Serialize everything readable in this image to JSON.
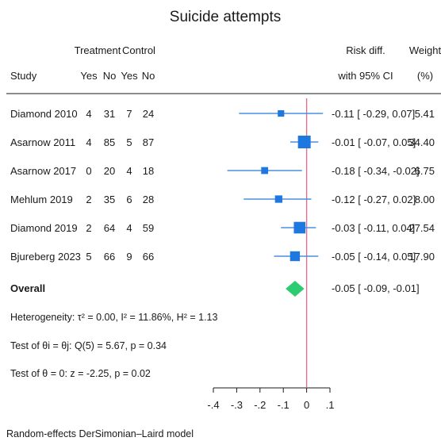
{
  "chart_data": {
    "type": "forest",
    "title": "Suicide attempts",
    "headers": {
      "study": "Study",
      "treatment": "Treatment",
      "control": "Control",
      "yes": "Yes",
      "no": "No",
      "effect_line1": "Risk diff.",
      "effect_line2": "with 95% CI",
      "weight_line1": "Weight",
      "weight_line2": "(%)"
    },
    "studies": [
      {
        "name": "Diamond 2010",
        "t_yes": "4",
        "t_no": "31",
        "c_yes": "7",
        "c_no": "24",
        "rd": -0.11,
        "lo": -0.29,
        "hi": 0.07,
        "ci_text": "-0.11 [ -0.29,  0.07]",
        "weight": 5.41,
        "weight_text": "5.41"
      },
      {
        "name": "Asarnow 2011",
        "t_yes": "4",
        "t_no": "85",
        "c_yes": "5",
        "c_no": "87",
        "rd": -0.01,
        "lo": -0.07,
        "hi": 0.05,
        "ci_text": "-0.01 [ -0.07,  0.05]",
        "weight": 34.4,
        "weight_text": "34.40"
      },
      {
        "name": "Asarnow 2017",
        "t_yes": "0",
        "t_no": "20",
        "c_yes": "4",
        "c_no": "18",
        "rd": -0.18,
        "lo": -0.34,
        "hi": -0.02,
        "ci_text": "-0.18 [ -0.34, -0.02]",
        "weight": 6.75,
        "weight_text": "6.75"
      },
      {
        "name": "Mehlum 2019",
        "t_yes": "2",
        "t_no": "35",
        "c_yes": "6",
        "c_no": "28",
        "rd": -0.12,
        "lo": -0.27,
        "hi": 0.02,
        "ci_text": "-0.12 [ -0.27,  0.02]",
        "weight": 8.0,
        "weight_text": "8.00"
      },
      {
        "name": "Diamond 2019",
        "t_yes": "2",
        "t_no": "64",
        "c_yes": "4",
        "c_no": "59",
        "rd": -0.03,
        "lo": -0.11,
        "hi": 0.04,
        "ci_text": "-0.03 [ -0.11,  0.04]",
        "weight": 27.54,
        "weight_text": "27.54"
      },
      {
        "name": "Bjureberg 2023",
        "t_yes": "5",
        "t_no": "66",
        "c_yes": "9",
        "c_no": "66",
        "rd": -0.05,
        "lo": -0.14,
        "hi": 0.05,
        "ci_text": "-0.05 [ -0.14,  0.05]",
        "weight": 17.9,
        "weight_text": "17.90"
      }
    ],
    "overall": {
      "label": "Overall",
      "rd": -0.05,
      "lo": -0.09,
      "hi": -0.01,
      "ci_text": "-0.05 [ -0.09, -0.01]"
    },
    "stats": {
      "heterogeneity": "Heterogeneity: τ² = 0.00, I² = 11.86%, H² = 1.13",
      "test_theta_eq": "Test of θi = θj: Q(5) = 5.67, p = 0.34",
      "test_theta_zero": "Test of θ = 0: z = -2.25, p = 0.02"
    },
    "xaxis": {
      "ticks": [
        -0.4,
        -0.3,
        -0.2,
        -0.1,
        0,
        0.1
      ],
      "tick_labels": [
        "-.4",
        "-.3",
        "-.2",
        "-.1",
        "0",
        ".1"
      ],
      "xlim": [
        -0.4,
        0.1
      ]
    },
    "null_line": 0,
    "footnote": "Random-effects DerSimonian–Laird model",
    "colors": {
      "ci_line": "#4a90e2",
      "square": "#1f77e0",
      "diamond": "#2ecc71",
      "null_line": "#d9728f",
      "text": "#1a1a1a"
    }
  }
}
